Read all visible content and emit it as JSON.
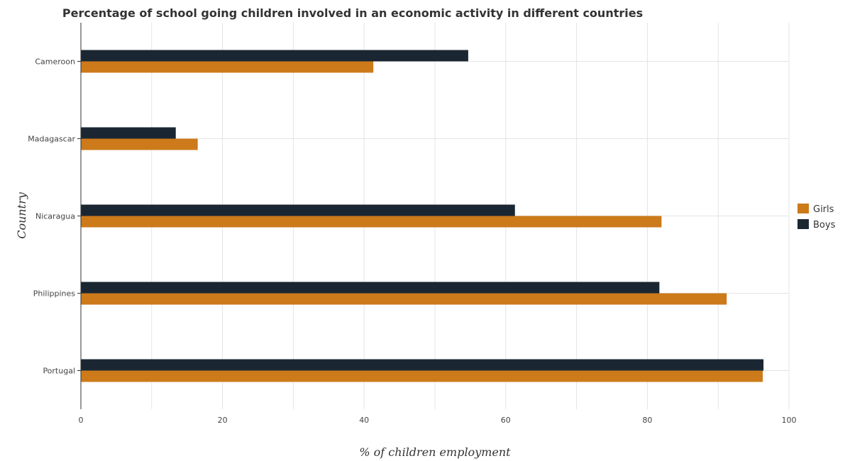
{
  "chart_data": {
    "type": "bar",
    "orientation": "horizontal",
    "title": "Percentage of school going children involved in an economic activity in different countries",
    "xlabel": "% of children employment",
    "ylabel": "Country",
    "categories": [
      "Cameroon",
      "Madagascar",
      "Nicaragua",
      "Philippines",
      "Portugal"
    ],
    "series": [
      {
        "name": "Girls",
        "color": "#cc7a1a",
        "values": [
          41.3,
          16.5,
          82.0,
          91.2,
          96.3
        ]
      },
      {
        "name": "Boys",
        "color": "#1a2733",
        "values": [
          54.7,
          13.4,
          61.3,
          81.7,
          96.4
        ]
      }
    ],
    "xlim": [
      0,
      100
    ],
    "xticks": [
      0,
      20,
      40,
      60,
      80,
      100
    ],
    "grid": true,
    "legend_position": "right"
  }
}
